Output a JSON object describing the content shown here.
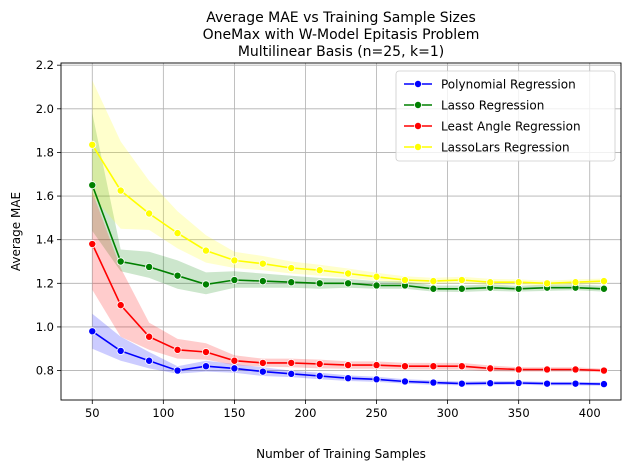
{
  "chart_data": {
    "type": "line",
    "title_lines": [
      "Average MAE vs Training Sample Sizes",
      "OneMax with W-Model Epitasis Problem",
      "Multilinear Basis (n=25, k=1)"
    ],
    "xlabel": "Number of Training Samples",
    "ylabel": "Average MAE",
    "xlim": [
      28,
      422
    ],
    "ylim": [
      0.665,
      2.21
    ],
    "xticks": [
      50,
      100,
      150,
      200,
      250,
      300,
      350,
      400
    ],
    "yticks": [
      0.8,
      1.0,
      1.2,
      1.4,
      1.6,
      1.8,
      2.0,
      2.2
    ],
    "grid": true,
    "legend_position": "upper-right",
    "x": [
      50,
      70,
      90,
      110,
      130,
      150,
      170,
      190,
      210,
      230,
      250,
      270,
      290,
      310,
      330,
      350,
      370,
      390,
      410
    ],
    "series": [
      {
        "name": "Polynomial Regression",
        "color": "#0000ff",
        "values": [
          0.98,
          0.89,
          0.845,
          0.8,
          0.82,
          0.81,
          0.795,
          0.785,
          0.775,
          0.765,
          0.76,
          0.75,
          0.745,
          0.74,
          0.742,
          0.743,
          0.74,
          0.74,
          0.738
        ],
        "lower": [
          0.9,
          0.845,
          0.81,
          0.785,
          0.795,
          0.79,
          0.775,
          0.77,
          0.76,
          0.752,
          0.748,
          0.74,
          0.735,
          0.732,
          0.733,
          0.735,
          0.732,
          0.732,
          0.73
        ],
        "upper": [
          1.06,
          0.955,
          0.885,
          0.82,
          0.845,
          0.83,
          0.815,
          0.8,
          0.79,
          0.778,
          0.772,
          0.76,
          0.755,
          0.75,
          0.752,
          0.752,
          0.748,
          0.748,
          0.746
        ]
      },
      {
        "name": "Lasso Regression",
        "color": "#008000",
        "values": [
          1.65,
          1.3,
          1.275,
          1.235,
          1.195,
          1.215,
          1.21,
          1.205,
          1.2,
          1.2,
          1.19,
          1.19,
          1.175,
          1.175,
          1.18,
          1.175,
          1.18,
          1.18,
          1.175
        ],
        "lower": [
          1.44,
          1.255,
          1.225,
          1.175,
          1.15,
          1.18,
          1.18,
          1.18,
          1.175,
          1.18,
          1.175,
          1.175,
          1.162,
          1.16,
          1.165,
          1.162,
          1.165,
          1.168,
          1.162
        ],
        "upper": [
          1.98,
          1.355,
          1.345,
          1.305,
          1.25,
          1.255,
          1.245,
          1.235,
          1.225,
          1.22,
          1.21,
          1.21,
          1.19,
          1.19,
          1.195,
          1.188,
          1.195,
          1.195,
          1.188
        ]
      },
      {
        "name": "Least Angle Regression",
        "color": "#ff0000",
        "values": [
          1.38,
          1.1,
          0.955,
          0.895,
          0.885,
          0.845,
          0.835,
          0.835,
          0.83,
          0.825,
          0.825,
          0.82,
          0.82,
          0.82,
          0.81,
          0.805,
          0.805,
          0.805,
          0.8
        ],
        "lower": [
          1.17,
          0.955,
          0.895,
          0.855,
          0.85,
          0.825,
          0.818,
          0.815,
          0.81,
          0.808,
          0.808,
          0.805,
          0.805,
          0.805,
          0.797,
          0.795,
          0.795,
          0.795,
          0.792
        ],
        "upper": [
          1.62,
          1.27,
          1.02,
          0.945,
          0.925,
          0.87,
          0.855,
          0.855,
          0.85,
          0.842,
          0.842,
          0.835,
          0.835,
          0.835,
          0.823,
          0.815,
          0.815,
          0.815,
          0.808
        ]
      },
      {
        "name": "LassoLars Regression",
        "color": "#ffff00",
        "values": [
          1.835,
          1.625,
          1.52,
          1.43,
          1.35,
          1.305,
          1.29,
          1.27,
          1.26,
          1.245,
          1.23,
          1.215,
          1.21,
          1.215,
          1.205,
          1.205,
          1.2,
          1.205,
          1.21
        ],
        "lower": [
          1.6,
          1.45,
          1.445,
          1.36,
          1.295,
          1.27,
          1.26,
          1.245,
          1.235,
          1.225,
          1.212,
          1.2,
          1.197,
          1.2,
          1.192,
          1.192,
          1.188,
          1.193,
          1.197
        ],
        "upper": [
          2.13,
          1.85,
          1.67,
          1.53,
          1.42,
          1.345,
          1.325,
          1.3,
          1.285,
          1.268,
          1.248,
          1.232,
          1.225,
          1.23,
          1.22,
          1.218,
          1.212,
          1.218,
          1.222
        ]
      }
    ]
  }
}
